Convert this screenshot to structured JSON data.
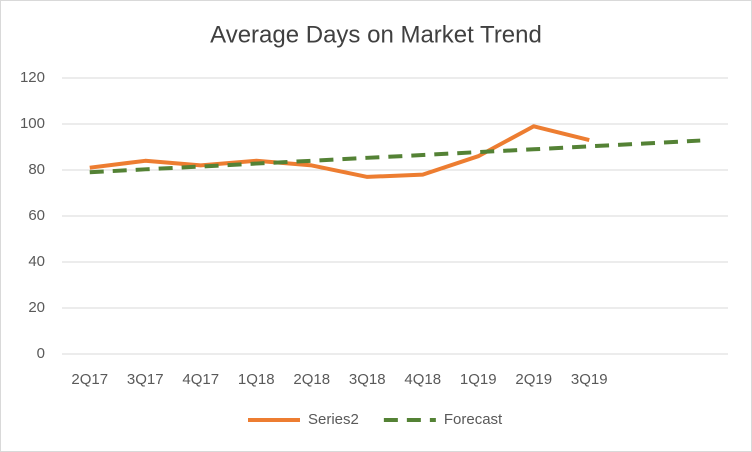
{
  "chart_data": {
    "type": "line",
    "title": "Average Days on Market Trend",
    "categories": [
      "2Q17",
      "3Q17",
      "4Q17",
      "1Q18",
      "2Q18",
      "3Q18",
      "4Q18",
      "1Q19",
      "2Q19",
      "3Q19",
      null,
      null
    ],
    "series": [
      {
        "name": "Series2",
        "color": "#ed7d31",
        "dashed": false,
        "values": [
          81,
          84,
          82,
          84,
          82,
          77,
          78,
          86,
          99,
          93,
          null,
          null
        ]
      },
      {
        "name": "Forecast",
        "color": "#548235",
        "dashed": true,
        "values": [
          79,
          80.3,
          81.5,
          82.8,
          84,
          85.3,
          86.5,
          87.8,
          89,
          90.3,
          91.5,
          92.8
        ]
      }
    ],
    "ylim": [
      0,
      120
    ],
    "yticks": [
      0,
      20,
      40,
      60,
      80,
      100,
      120
    ],
    "grid": true,
    "legend": "bottom"
  }
}
